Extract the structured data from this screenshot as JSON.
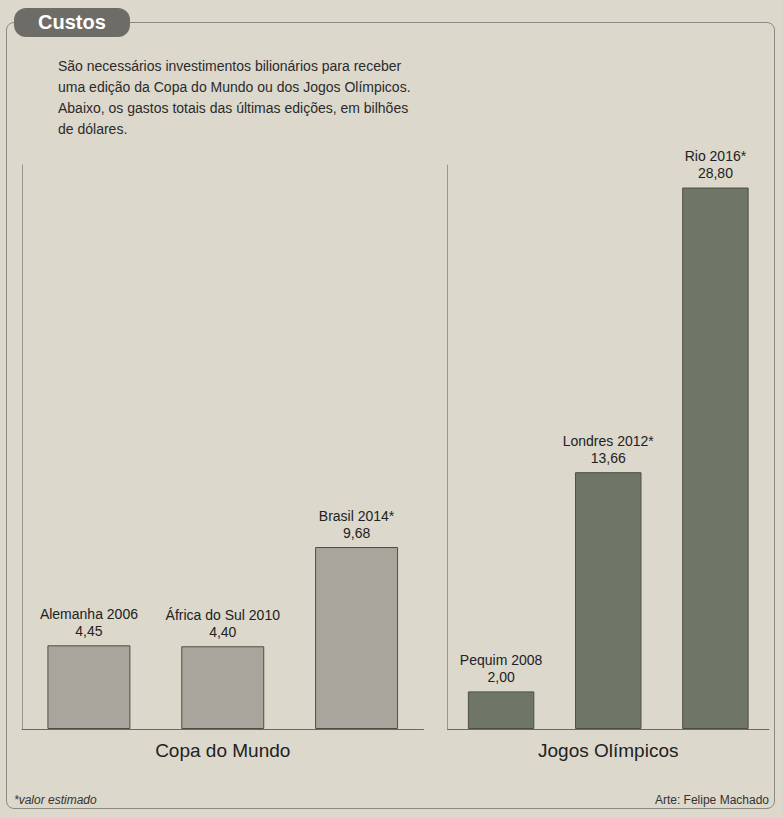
{
  "chart_data": {
    "type": "bar",
    "title": "Custos",
    "subtitle": "São necessários investimentos bilionários para receber uma edição da Copa do Mundo ou dos Jogos Olímpicos. Abaixo, os gastos totais das últimas edições, em bilhões de dólares.",
    "annotations": [
      "*valor estimado",
      "Arte: Felipe Machado"
    ],
    "categories": [
      "Alemanha 2006",
      "África do Sul 2010",
      "Brasil 2014*",
      "Pequim 2008",
      "Londres 2012*",
      "Rio 2016*"
    ],
    "groups": [
      "Copa do Mundo",
      "Copa do Mundo",
      "Copa do Mundo",
      "Jogos Olímpicos",
      "Jogos Olímpicos",
      "Jogos Olímpicos"
    ],
    "values": [
      4.45,
      4.4,
      9.68,
      2.0,
      13.66,
      28.8
    ],
    "value_labels": [
      "4,45",
      "4,40",
      "9,68",
      "2,00",
      "13,66",
      "28,80"
    ],
    "colors": [
      "#a8a69c",
      "#a8a69c",
      "#a8a69c",
      "#6f7668",
      "#6f7668",
      "#6f7668"
    ],
    "ylim": [
      0,
      30
    ],
    "data_labels": true,
    "tick_labels": false,
    "grid": false
  }
}
